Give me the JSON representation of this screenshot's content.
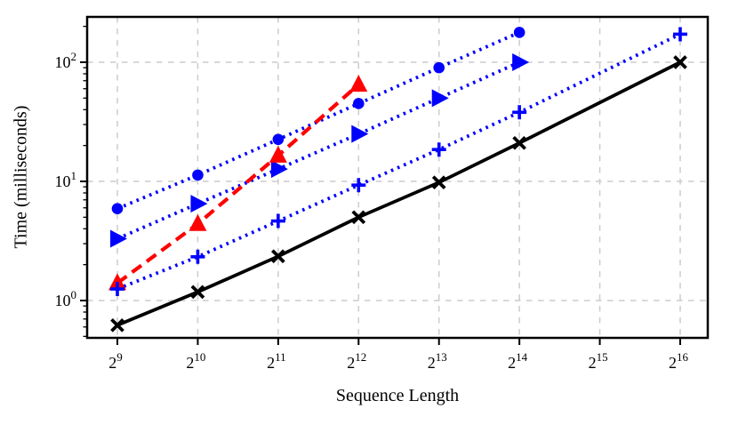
{
  "chart_data": {
    "type": "line",
    "title": "",
    "xlabel": "Sequence Length",
    "ylabel": "Time (milliseconds)",
    "x_scale": "log2",
    "y_scale": "log10",
    "grid": true,
    "legend": "none",
    "x_range": [
      390,
      83500
    ],
    "y_range": [
      0.49,
      244
    ],
    "x_ticks": [
      {
        "label": "2^9",
        "value": 512
      },
      {
        "label": "2^10",
        "value": 1024
      },
      {
        "label": "2^11",
        "value": 2048
      },
      {
        "label": "2^12",
        "value": 4096
      },
      {
        "label": "2^13",
        "value": 8192
      },
      {
        "label": "2^14",
        "value": 16384
      },
      {
        "label": "2^15",
        "value": 32768
      },
      {
        "label": "2^16",
        "value": 65536
      }
    ],
    "y_ticks": [
      {
        "label": "10^0",
        "value": 1
      },
      {
        "label": "10^1",
        "value": 10
      },
      {
        "label": "10^2",
        "value": 100
      }
    ],
    "colors": {
      "blue": "#0000ff",
      "red": "#ff0000",
      "black": "#000000",
      "grid": "#cccccc",
      "background": "#ffffff"
    },
    "series": [
      {
        "name": "blue-dotted-circle",
        "color": "#0000ff",
        "line_style": "dotted",
        "marker": "circle",
        "x": [
          512,
          1024,
          2048,
          4096,
          8192,
          16384
        ],
        "y": [
          5.9,
          11.3,
          22.5,
          45,
          90,
          178
        ]
      },
      {
        "name": "blue-dotted-triangle-right",
        "color": "#0000ff",
        "line_style": "dotted",
        "marker": "triangle-right",
        "x": [
          512,
          1024,
          2048,
          4096,
          8192,
          16384
        ],
        "y": [
          3.3,
          6.5,
          12.7,
          25,
          50,
          100
        ]
      },
      {
        "name": "red-dashed-triangle-up",
        "color": "#ff0000",
        "line_style": "dashed",
        "marker": "triangle-up",
        "x": [
          512,
          1024,
          2048,
          4096
        ],
        "y": [
          1.4,
          4.4,
          16.5,
          65
        ]
      },
      {
        "name": "blue-dotted-plus",
        "color": "#0000ff",
        "line_style": "dotted",
        "marker": "plus",
        "x": [
          512,
          1024,
          2048,
          4096,
          8192,
          16384,
          65536
        ],
        "y": [
          1.25,
          2.33,
          4.65,
          9.3,
          18.5,
          38,
          172
        ]
      },
      {
        "name": "black-solid-x",
        "color": "#000000",
        "line_style": "solid",
        "marker": "x",
        "x": [
          512,
          1024,
          2048,
          4096,
          8192,
          16384,
          65536
        ],
        "y": [
          0.62,
          1.18,
          2.35,
          5.0,
          9.8,
          21,
          100
        ]
      }
    ]
  }
}
